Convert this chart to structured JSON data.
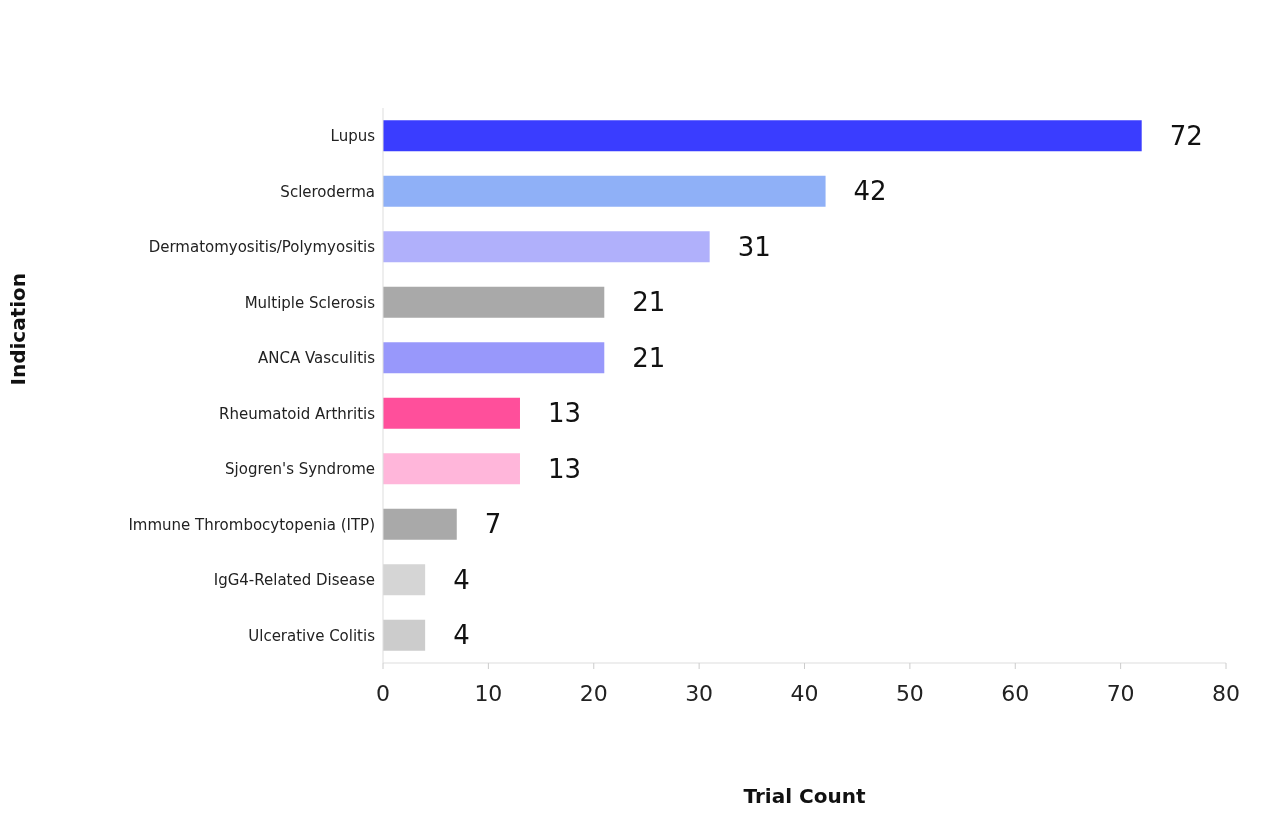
{
  "chart_data": {
    "type": "bar",
    "orientation": "horizontal",
    "xlabel": "Trial Count",
    "ylabel": "Indication",
    "categories": [
      "Lupus",
      "Scleroderma",
      "Dermatomyositis/Polymyositis",
      "Multiple Sclerosis",
      "ANCA Vasculitis",
      "Rheumatoid Arthritis",
      "Sjogren's Syndrome",
      "Immune Thrombocytopenia (ITP)",
      "IgG4-Related Disease",
      "Ulcerative Colitis"
    ],
    "values": [
      72,
      42,
      31,
      21,
      21,
      13,
      13,
      7,
      4,
      4
    ],
    "colors": [
      "#3a3dff",
      "#8fb0f7",
      "#b0b0fb",
      "#a9a9a9",
      "#9898fb",
      "#ff4f9b",
      "#ffb6da",
      "#a9a9a9",
      "#d5d5d5",
      "#cccccc"
    ],
    "xlim": [
      0,
      80
    ],
    "xticks": [
      0,
      10,
      20,
      30,
      40,
      50,
      60,
      70,
      80
    ],
    "data_labels": true,
    "grid": false
  }
}
